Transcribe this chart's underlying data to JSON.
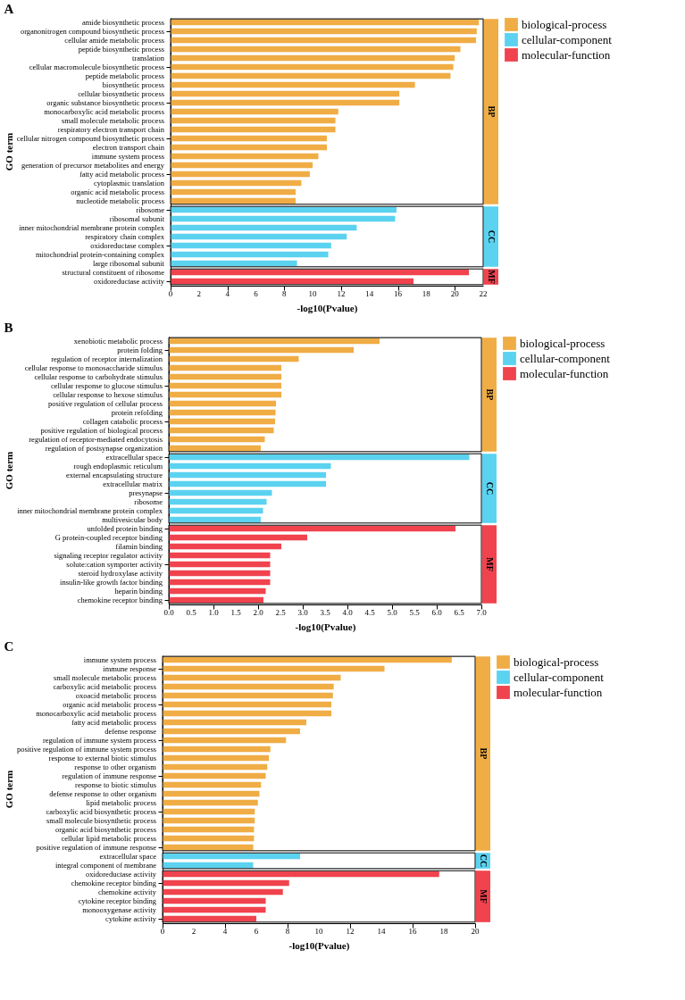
{
  "chart_data": [
    {
      "type": "bar",
      "orientation": "horizontal",
      "title": "A",
      "xlabel": "-log10(Pvalue)",
      "ylabel": "GO term",
      "legend": "right",
      "grid": false,
      "categories": [
        "amide biosynthetic process",
        "organonitrogen compound biosynthetic process",
        "cellular amide metabolic process",
        "peptide biosynthetic process",
        "translation",
        "cellular macromolecule biosynthetic process",
        "peptide metabolic process",
        "biosynthetic process",
        "cellular biosynthetic process",
        "organic substance biosynthetic process",
        "monocarboxylic acid metabolic process",
        "small molecule metabolic process",
        "respiratory electron transport chain",
        "cellular nitrogen compound biosynthetic process",
        "electron transport chain",
        "immune system process",
        "generation of precursor metabolites and energy",
        "fatty acid metabolic process",
        "cytoplasmic translation",
        "organic acid metabolic process",
        "nucleotide metabolic process",
        "ribosome",
        "ribosomal subunit",
        "inner mitochondrial membrane protein complex",
        "respiratory chain complex",
        "oxidoreductase complex",
        "mitochondrial protein-containing complex",
        "large ribosomal subunit",
        "structural constituent of ribosome",
        "oxidoreductase activity"
      ],
      "series": [
        {
          "name": "biological-process",
          "color": "#f0ad45",
          "values": [
            21.7,
            21.55,
            21.5,
            20.4,
            20.0,
            19.9,
            19.7,
            17.2,
            16.1,
            16.1,
            11.8,
            11.6,
            11.6,
            11.0,
            11.0,
            10.4,
            10.0,
            9.8,
            9.2,
            8.8,
            8.8,
            null,
            null,
            null,
            null,
            null,
            null,
            null,
            null,
            null
          ]
        },
        {
          "name": "cellular-component",
          "color": "#5bd2f0",
          "values": [
            null,
            null,
            null,
            null,
            null,
            null,
            null,
            null,
            null,
            null,
            null,
            null,
            null,
            null,
            null,
            null,
            null,
            null,
            null,
            null,
            null,
            15.9,
            15.8,
            13.1,
            12.4,
            11.3,
            11.1,
            8.9,
            null,
            null
          ]
        },
        {
          "name": "molecular-function",
          "color": "#f0434e",
          "values": [
            null,
            null,
            null,
            null,
            null,
            null,
            null,
            null,
            null,
            null,
            null,
            null,
            null,
            null,
            null,
            null,
            null,
            null,
            null,
            null,
            null,
            null,
            null,
            null,
            null,
            null,
            null,
            null,
            21.0,
            17.1
          ]
        }
      ],
      "annotations": [
        "BP",
        "CC",
        "MF"
      ],
      "xlim": [
        0,
        22
      ],
      "xticks": [
        0,
        2,
        4,
        6,
        8,
        10,
        12,
        14,
        16,
        18,
        20,
        22
      ]
    },
    {
      "type": "bar",
      "orientation": "horizontal",
      "title": "B",
      "xlabel": "-log10(Pvalue)",
      "ylabel": "GO term",
      "legend": "right",
      "grid": false,
      "categories": [
        "xenobiotic metabolic process",
        "protein folding",
        "regulation of receptor internalization",
        "cellular response to monosaccharide stimulus",
        "cellular response to carbohydrate stimulus",
        "cellular response to glucose stimulus",
        "cellular response to hexose stimulus",
        "positive regulation of cellular process",
        "protein refolding",
        "collagen catabolic process",
        "positive regulation of biological process",
        "regulation of receptor-mediated endocytosis",
        "regulation of postsynapse organization",
        "extracellular space",
        "rough endoplasmic reticulum",
        "external encapsulating structure",
        "extracellular matrix",
        "presynapse",
        "ribosome",
        "inner mitochondrial membrane protein complex",
        "multivesicular body",
        "unfolded protein binding",
        "G protein-coupled receptor binding",
        "filamin binding",
        "signaling receptor regulator activity",
        "solute:cation symporter activity",
        "steroid hydroxylase activity",
        "insulin-like growth factor binding",
        "heparin binding",
        "chemokine receptor binding"
      ],
      "series": [
        {
          "name": "biological-process",
          "color": "#f0ad45",
          "values": [
            4.72,
            4.14,
            2.91,
            2.52,
            2.52,
            2.52,
            2.52,
            2.4,
            2.39,
            2.38,
            2.35,
            2.15,
            2.06,
            null,
            null,
            null,
            null,
            null,
            null,
            null,
            null,
            null,
            null,
            null,
            null,
            null,
            null,
            null,
            null,
            null
          ]
        },
        {
          "name": "cellular-component",
          "color": "#5bd2f0",
          "values": [
            null,
            null,
            null,
            null,
            null,
            null,
            null,
            null,
            null,
            null,
            null,
            null,
            null,
            6.73,
            3.63,
            3.52,
            3.52,
            2.31,
            2.19,
            2.11,
            2.06,
            null,
            null,
            null,
            null,
            null,
            null,
            null,
            null,
            null
          ]
        },
        {
          "name": "molecular-function",
          "color": "#f0434e",
          "values": [
            null,
            null,
            null,
            null,
            null,
            null,
            null,
            null,
            null,
            null,
            null,
            null,
            null,
            null,
            null,
            null,
            null,
            null,
            null,
            null,
            null,
            6.42,
            3.1,
            2.52,
            2.27,
            2.27,
            2.27,
            2.27,
            2.17,
            2.12
          ]
        }
      ],
      "annotations": [
        "BP",
        "CC",
        "MF"
      ],
      "xlim": [
        0,
        7
      ],
      "xticks": [
        {
          "value": 0,
          "label": "0.0"
        },
        0.5,
        {
          "value": 1,
          "label": "1.0"
        },
        1.5,
        {
          "value": 2,
          "label": "2.0"
        },
        2.5,
        {
          "value": 3,
          "label": "3.0"
        },
        3.5,
        {
          "value": 4,
          "label": "4.0"
        },
        4.5,
        {
          "value": 5,
          "label": "5.0"
        },
        5.5,
        {
          "value": 6,
          "label": "6.0"
        },
        6.5,
        {
          "value": 7,
          "label": "7.0"
        }
      ]
    },
    {
      "type": "bar",
      "orientation": "horizontal",
      "title": "C",
      "xlabel": "-log10(Pvalue)",
      "ylabel": "GO term",
      "legend": "right",
      "grid": false,
      "categories": [
        "immune system process",
        "immune response",
        "small molecule metabolic process",
        "carboxylic acid metabolic process",
        "oxoacid metabolic process",
        "organic acid metabolic process",
        "monocarboxylic acid metabolic process",
        "fatty acid metabolic process",
        "defense response",
        "regulation of immune system process",
        "positive regulation of immune system process",
        "response to external biotic stimulus",
        "response to other organism",
        "regulation of immune response",
        "response to biotic stimulus",
        "defense response to other organism",
        "lipid metabolic process",
        "carboxylic acid biosynthetic process",
        "small molecule biosynthetic process",
        "organic acid biosynthetic process",
        "cellular lipid metabolic process",
        "positive regulation of immune response",
        "extracellular space",
        "integral component of membrane",
        "oxidoreductase activity",
        "chemokine receptor binding",
        "chemokine activity",
        "cytokine receptor binding",
        "monooxygenase activity",
        "cytokine activity"
      ],
      "series": [
        {
          "name": "biological-process",
          "color": "#f0ad45",
          "values": [
            18.5,
            14.2,
            11.4,
            10.95,
            10.9,
            10.8,
            10.8,
            9.2,
            8.8,
            7.9,
            6.9,
            6.8,
            6.7,
            6.6,
            6.3,
            6.2,
            6.1,
            5.9,
            5.9,
            5.85,
            5.85,
            5.8,
            null,
            null,
            null,
            null,
            null,
            null,
            null,
            null
          ]
        },
        {
          "name": "cellular-component",
          "color": "#5bd2f0",
          "values": [
            null,
            null,
            null,
            null,
            null,
            null,
            null,
            null,
            null,
            null,
            null,
            null,
            null,
            null,
            null,
            null,
            null,
            null,
            null,
            null,
            null,
            null,
            8.8,
            5.8,
            null,
            null,
            null,
            null,
            null,
            null
          ]
        },
        {
          "name": "molecular-function",
          "color": "#f0434e",
          "values": [
            null,
            null,
            null,
            null,
            null,
            null,
            null,
            null,
            null,
            null,
            null,
            null,
            null,
            null,
            null,
            null,
            null,
            null,
            null,
            null,
            null,
            null,
            null,
            null,
            17.7,
            8.1,
            7.7,
            6.6,
            6.6,
            6.0
          ]
        }
      ],
      "annotations": [
        "BP",
        "CC",
        "MF"
      ],
      "xlim": [
        0,
        20
      ],
      "xticks": [
        0,
        2,
        4,
        6,
        8,
        10,
        12,
        14,
        16,
        18,
        20
      ]
    }
  ]
}
